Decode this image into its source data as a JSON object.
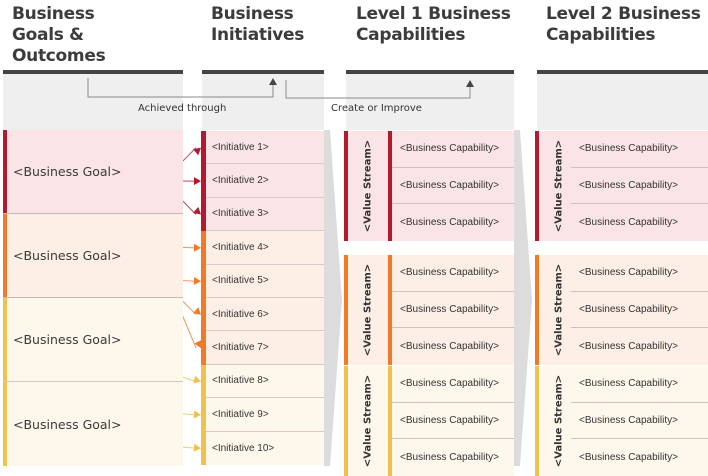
{
  "columns": [
    {
      "title_lines": [
        "Business",
        "Goals &",
        "Outcomes"
      ]
    },
    {
      "title_lines": [
        "Business",
        "Initiatives"
      ]
    },
    {
      "title_lines": [
        "Level 1 Business",
        "Capabilities"
      ]
    },
    {
      "title_lines": [
        "Level 2 Business",
        "Capabilities"
      ]
    }
  ],
  "connectors": {
    "achieved_through": "Achieved through",
    "create_or_improve": "Create or Improve"
  },
  "colors": {
    "red": "#b5192f",
    "orange": "#f07a28",
    "yellow": "#efc14f",
    "red_bg": "#fbe4e6",
    "orange_bg": "#fdefe6",
    "yellow_bg": "#fef8ec",
    "header_bar": "#444444",
    "band": "#efefef"
  },
  "goals": [
    {
      "label": "<Business Goal>",
      "color": "red"
    },
    {
      "label": "<Business Goal>",
      "color": "orange"
    },
    {
      "label": "<Business Goal>",
      "color": "yellow"
    },
    {
      "label": "<Business Goal>",
      "color": "yellow"
    }
  ],
  "initiatives": [
    {
      "label": "<Initiative 1>",
      "color": "red"
    },
    {
      "label": "<Initiative 2>",
      "color": "red"
    },
    {
      "label": "<Initiative 3>",
      "color": "red"
    },
    {
      "label": "<Initiative 4>",
      "color": "orange"
    },
    {
      "label": "<Initiative 5>",
      "color": "orange"
    },
    {
      "label": "<Initiative 6>",
      "color": "orange"
    },
    {
      "label": "<Initiative 7>",
      "color": "orange"
    },
    {
      "label": "<Initiative 8>",
      "color": "yellow"
    },
    {
      "label": "<Initiative 9>",
      "color": "yellow"
    },
    {
      "label": "<Initiative 10>",
      "color": "yellow"
    }
  ],
  "level1": [
    {
      "value_stream": "<Value Stream>",
      "color": "red",
      "capabilities": [
        "<Business Capability>",
        "<Business Capability>",
        "<Business Capability>"
      ]
    },
    {
      "value_stream": "<Value Stream>",
      "color": "orange",
      "capabilities": [
        "<Business Capability>",
        "<Business Capability>",
        "<Business Capability>"
      ]
    },
    {
      "value_stream": "<Value Stream>",
      "color": "yellow",
      "capabilities": [
        "<Business Capability>",
        "<Business Capability>",
        "<Business Capability>"
      ]
    }
  ],
  "level2": [
    {
      "value_stream": "<Value Stream>",
      "color": "red",
      "capabilities": [
        "<Business Capability>",
        "<Business Capability>",
        "<Business Capability>"
      ]
    },
    {
      "value_stream": "<Value Stream>",
      "color": "orange",
      "capabilities": [
        "<Business Capability>",
        "<Business Capability>",
        "<Business Capability>"
      ]
    },
    {
      "value_stream": "<Value Stream>",
      "color": "yellow",
      "capabilities": [
        "<Business Capability>",
        "<Business Capability>",
        "<Business Capability>"
      ]
    }
  ]
}
